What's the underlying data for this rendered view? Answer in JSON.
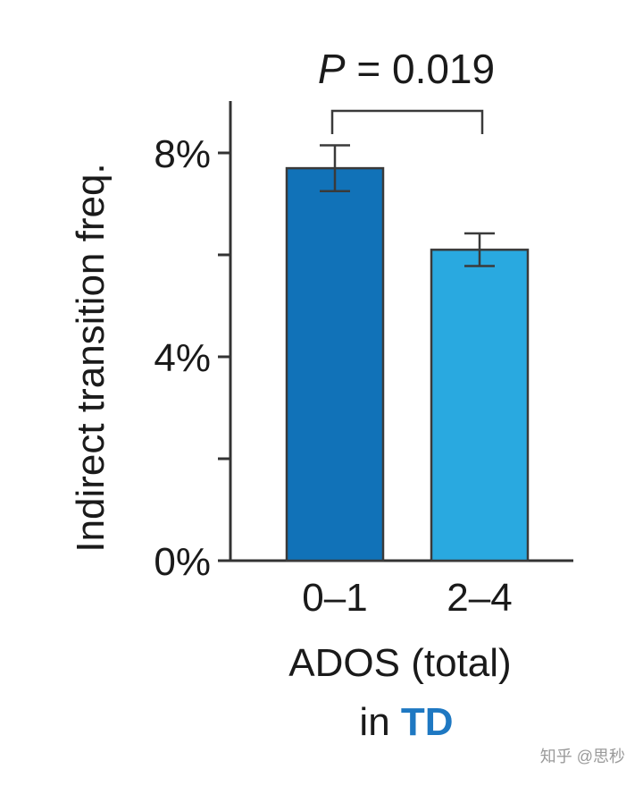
{
  "chart_data": {
    "type": "bar",
    "categories": [
      "0–1",
      "2–4"
    ],
    "values": [
      7.7,
      6.1
    ],
    "errors": [
      0.45,
      0.32
    ],
    "ylabel": "Indirect transition freq.",
    "ylim": [
      0,
      9
    ],
    "yticks": [
      0,
      2,
      4,
      6,
      8
    ],
    "yticklabels": [
      "0%",
      "",
      "4%",
      "",
      "8%"
    ],
    "xlabel_line1": "ADOS (total)",
    "xlabel_prefix": "in ",
    "xlabel_group": "TD",
    "significance": {
      "symbol": "P",
      "text": " = 0.019",
      "between": [
        0,
        1
      ]
    },
    "colors": {
      "bars": [
        "#1172b8",
        "#29a9e0"
      ],
      "group_label": "#1e78c2",
      "axis": "#333333",
      "text": "#1a1a1a"
    }
  },
  "watermark": "知乎 @思秒"
}
